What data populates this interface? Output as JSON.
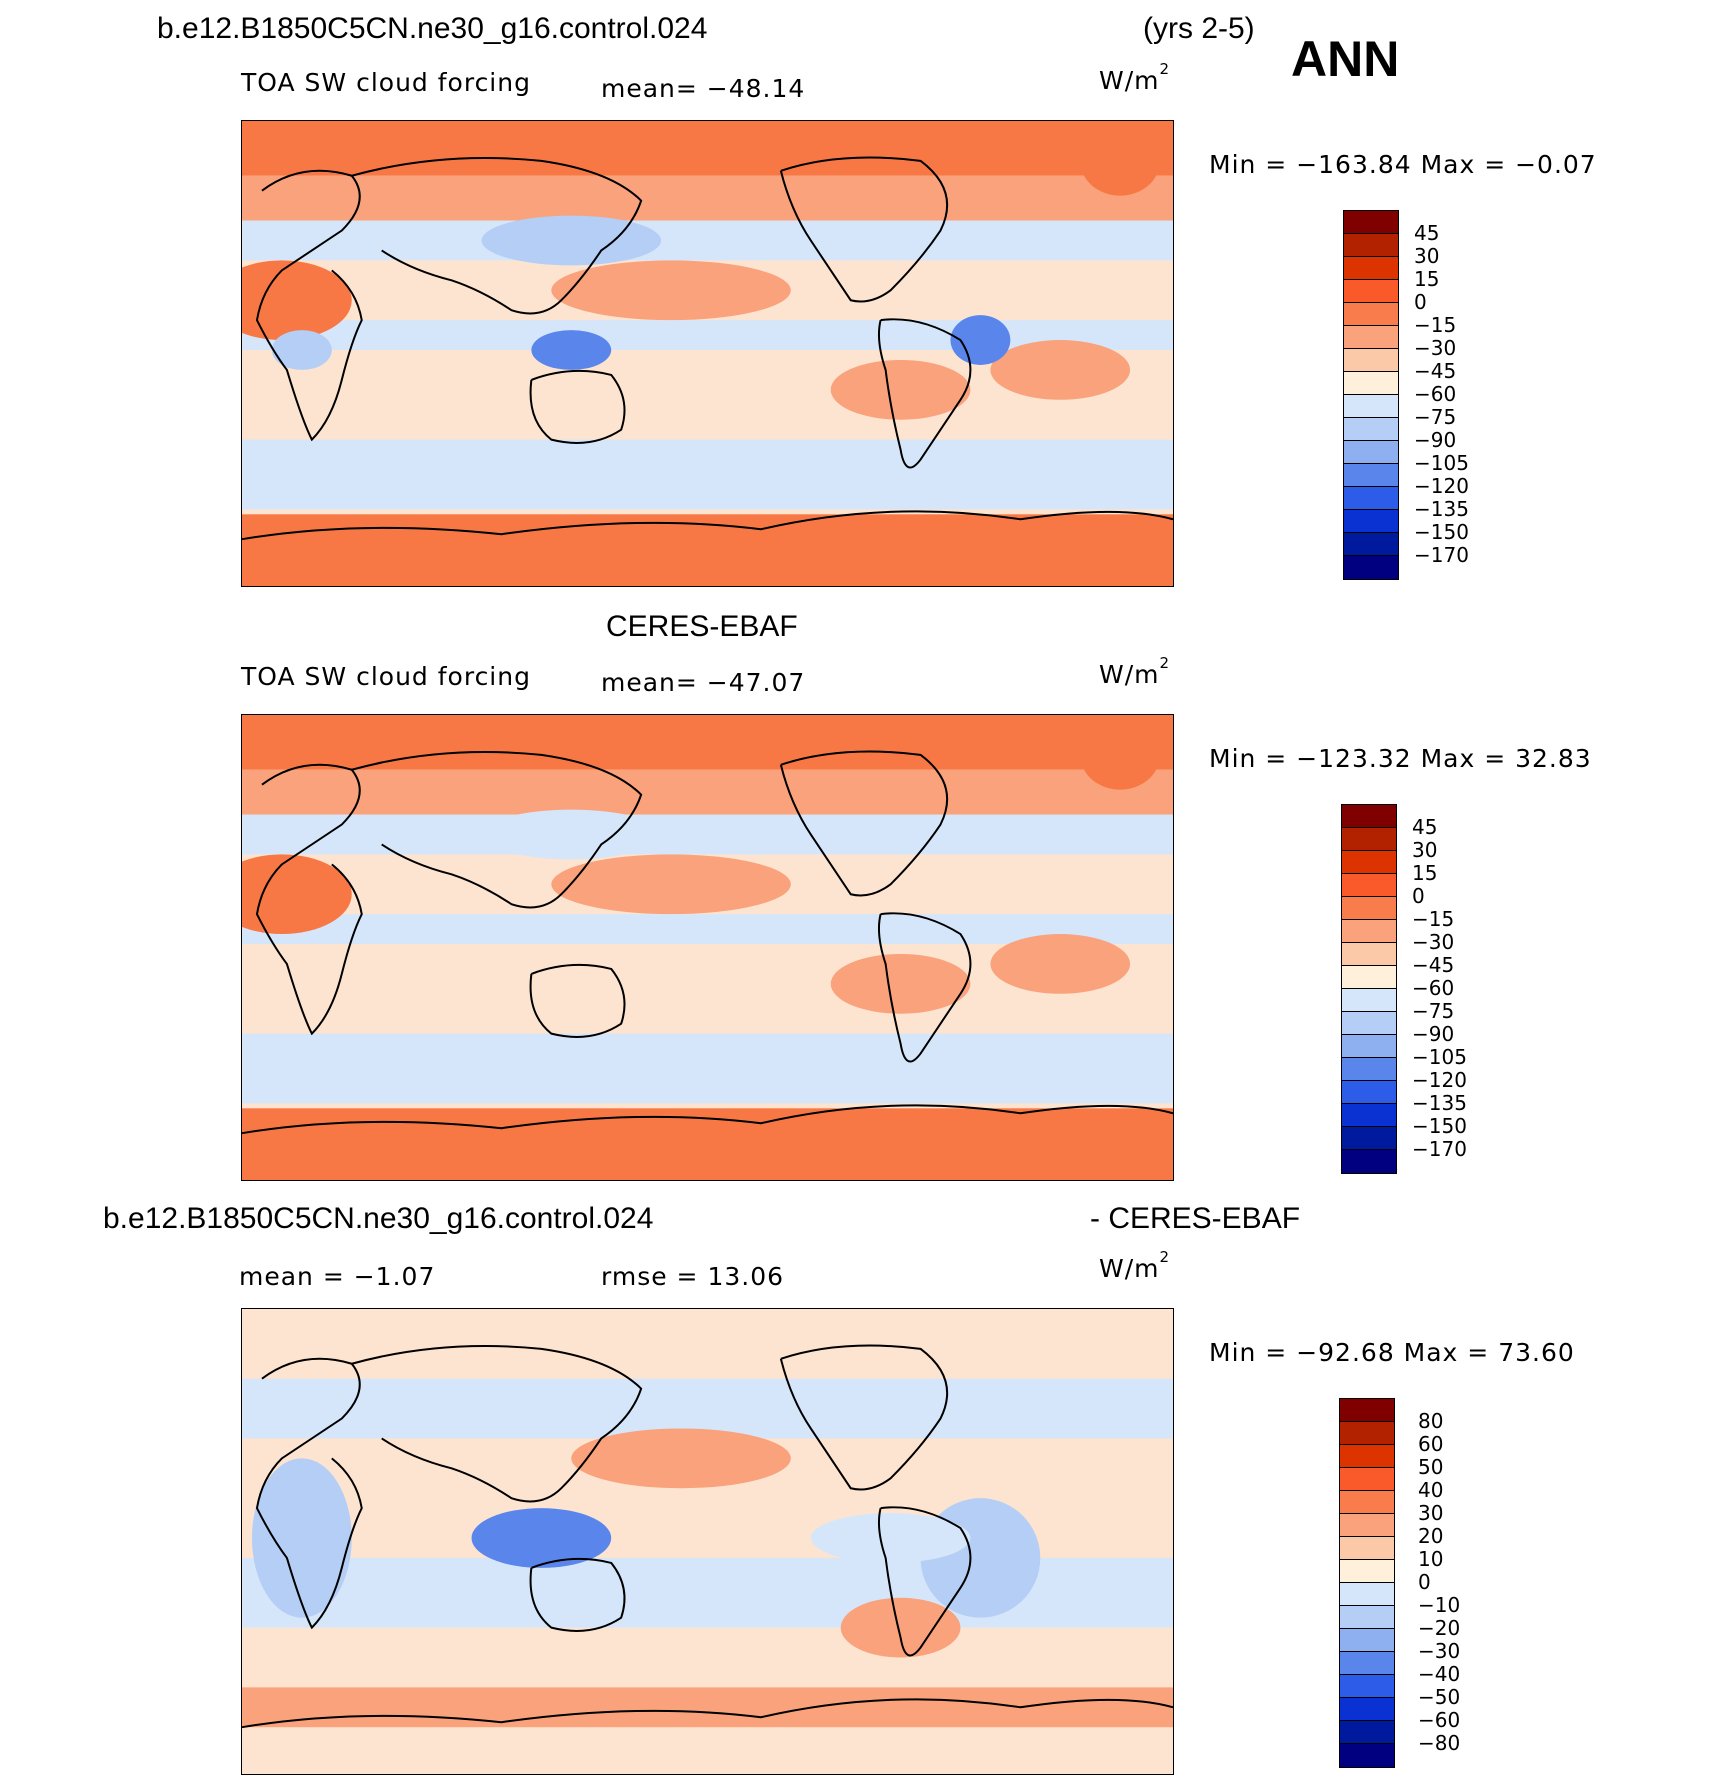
{
  "header": {
    "case_name": "b.e12.B1850C5CN.ne30_g16.control.024",
    "years": "(yrs 2-5)",
    "season": "ANN"
  },
  "panels": [
    {
      "id": "model",
      "left_label": "TOA SW cloud forcing",
      "mean_text": "mean= −48.14",
      "units": "W/m",
      "units_sup": "2",
      "minmax": "Min = −163.84 Max =  −0.07",
      "levels": [
        "45",
        "30",
        "15",
        "0",
        "−15",
        "−30",
        "−45",
        "−60",
        "−75",
        "−90",
        "−105",
        "−120",
        "−135",
        "−150",
        "−170"
      ]
    },
    {
      "id": "obs",
      "title": "CERES-EBAF",
      "left_label": "TOA SW cloud forcing",
      "mean_text": "mean= −47.07",
      "units": "W/m",
      "units_sup": "2",
      "minmax": "Min = −123.32 Max =  32.83",
      "levels": [
        "45",
        "30",
        "15",
        "0",
        "−15",
        "−30",
        "−45",
        "−60",
        "−75",
        "−90",
        "−105",
        "−120",
        "−135",
        "−150",
        "−170"
      ]
    },
    {
      "id": "diff",
      "title_left": "b.e12.B1850C5CN.ne30_g16.control.024",
      "title_right": "- CERES-EBAF",
      "mean_text": "mean =  −1.07",
      "rmse_text": "rmse =  13.06",
      "units": "W/m",
      "units_sup": "2",
      "minmax": "Min = −92.68 Max =  73.60",
      "levels": [
        "80",
        "60",
        "50",
        "40",
        "30",
        "20",
        "10",
        "0",
        "−10",
        "−20",
        "−30",
        "−40",
        "−50",
        "−60",
        "−80"
      ]
    }
  ],
  "colorbar_colors": [
    "#800000",
    "#b22200",
    "#dd3300",
    "#fa5a2a",
    "#f87c4c",
    "#f9a27c",
    "#fcc9a8",
    "#fff0dc",
    "#d6e6fa",
    "#b4cef5",
    "#8fb0f0",
    "#5a86ec",
    "#2d5ce8",
    "#0a32d2",
    "#001a9e",
    "#000080"
  ],
  "map_colors": {
    "ocean_background": "#fce4d0",
    "warm_band": "#f87845",
    "mid_orange": "#f9a27c",
    "light_blue": "#d6e6fa",
    "mid_blue": "#b4cef5",
    "deep_blue": "#5a86ec"
  }
}
